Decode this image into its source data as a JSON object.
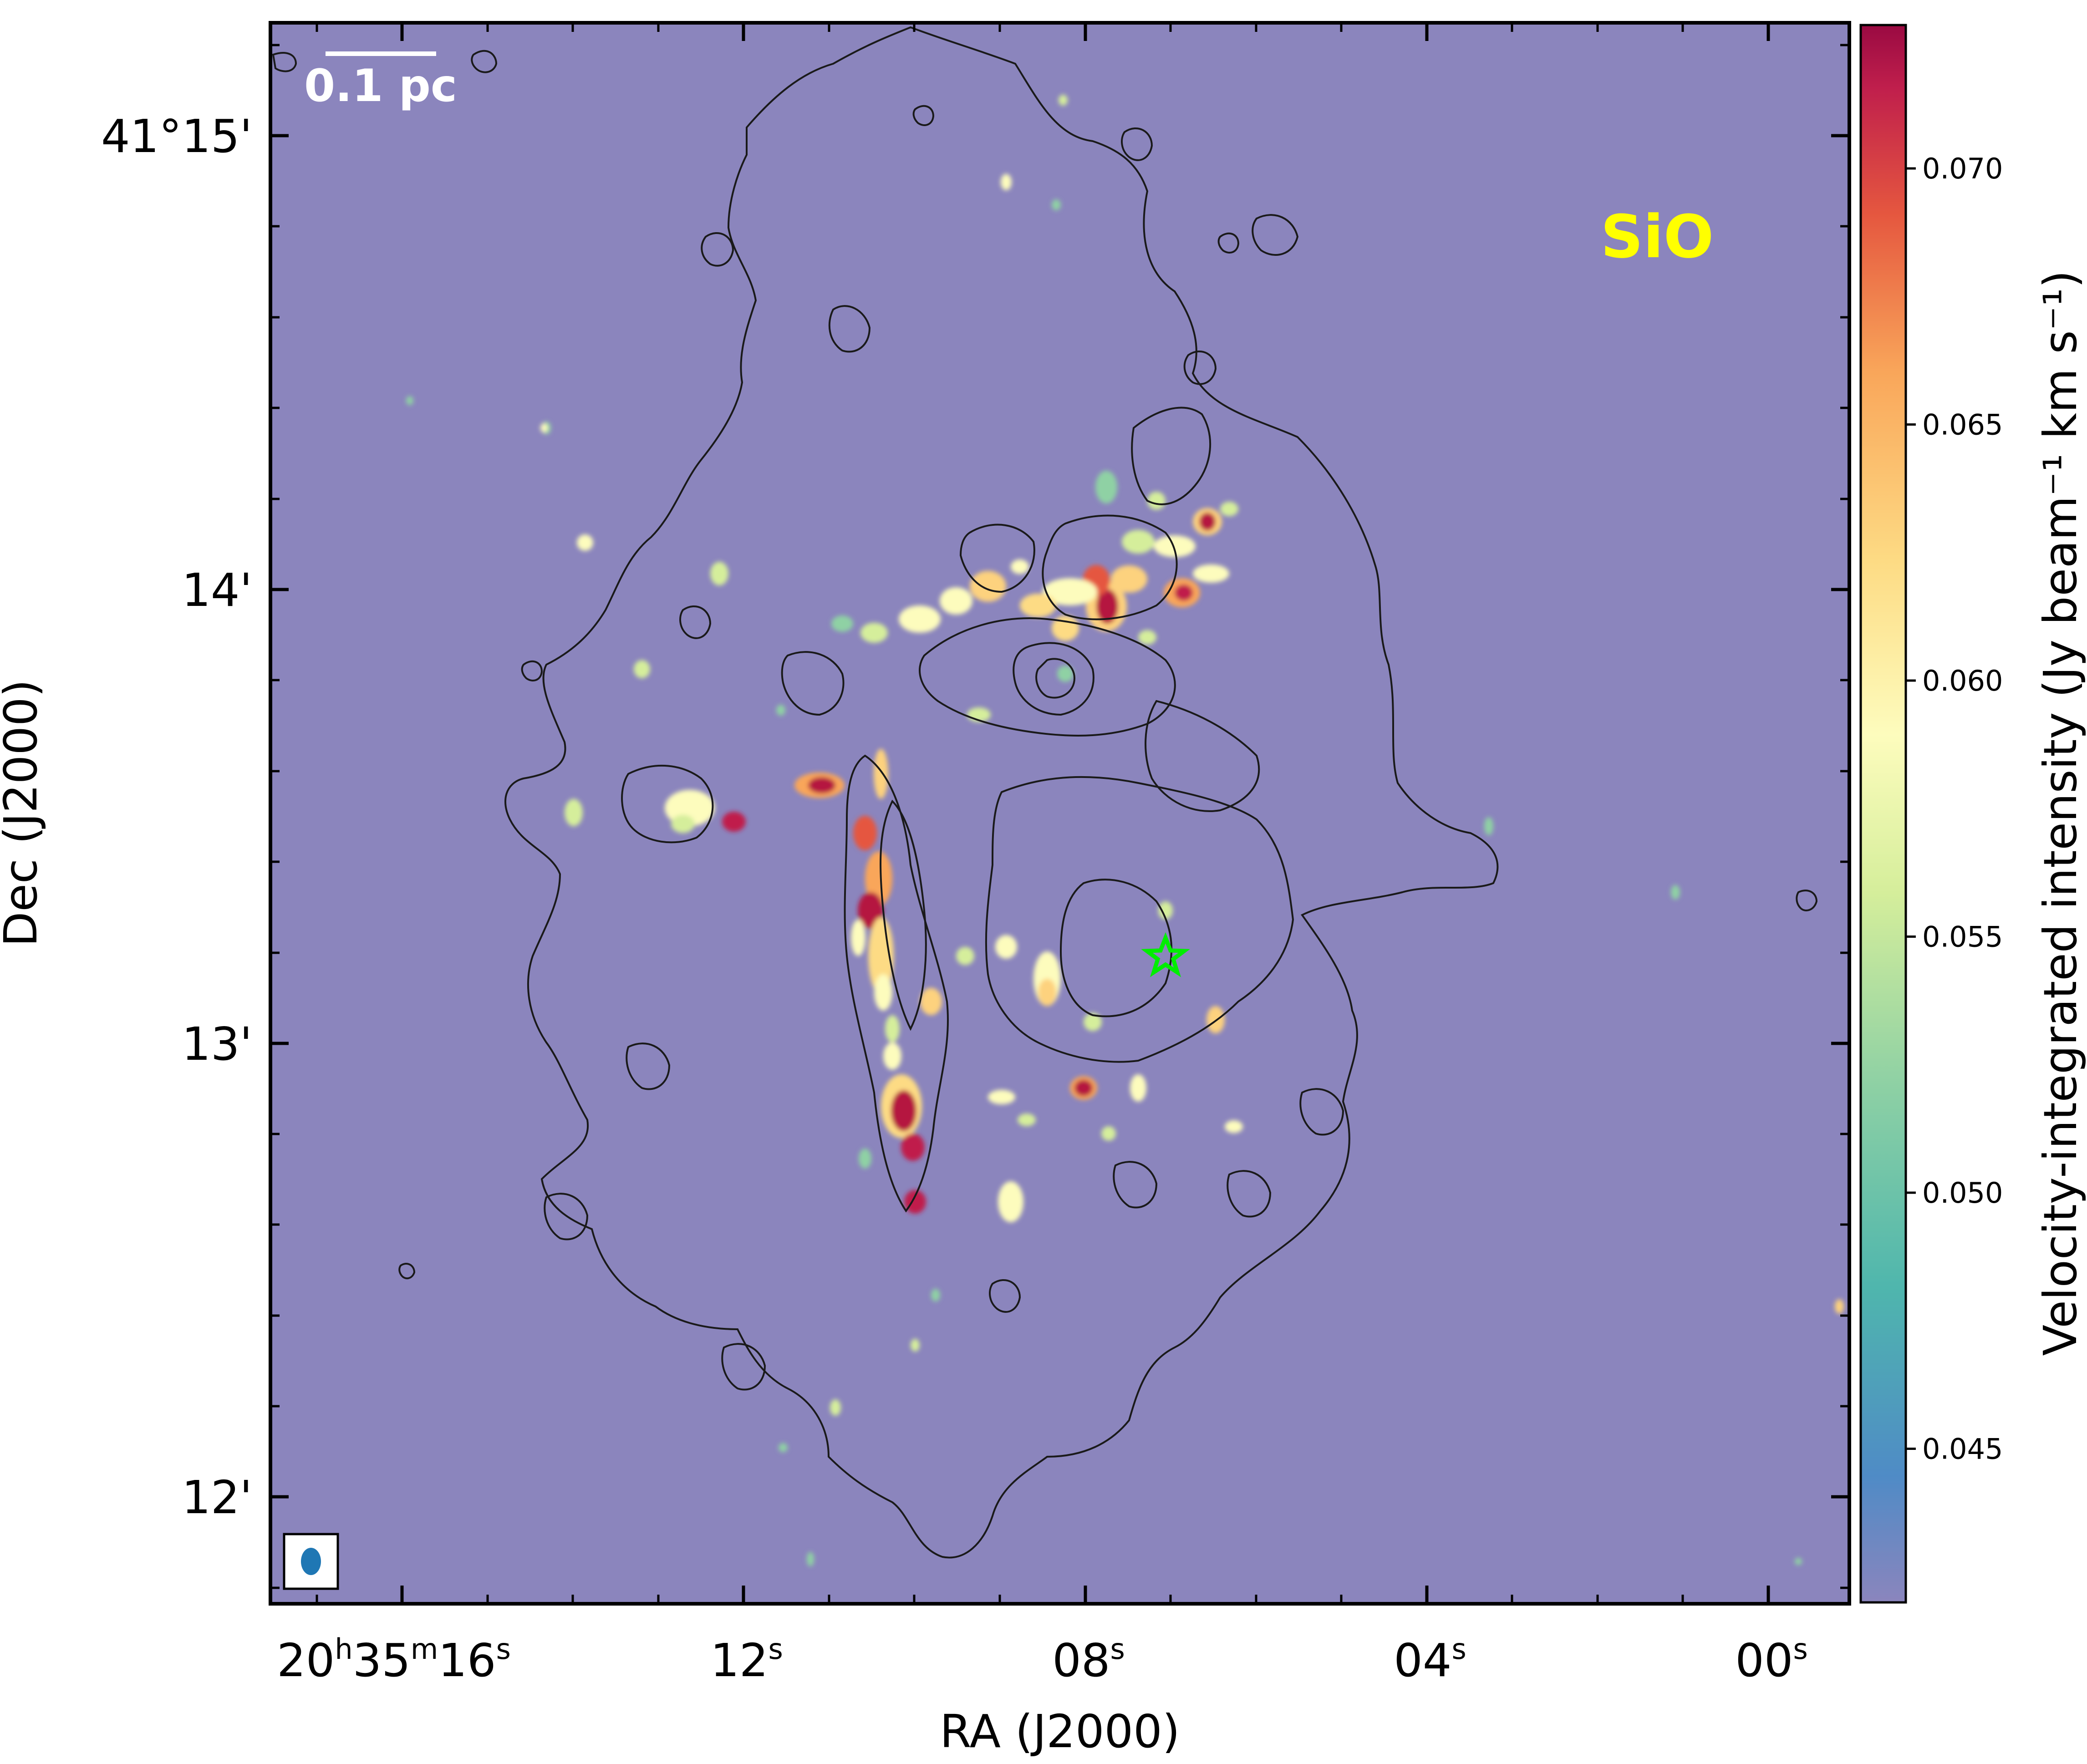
{
  "map": {
    "species_label": "SiO",
    "scale_bar_label": "0.1 pc",
    "xlabel": "RA (J2000)",
    "ylabel": "Dec (J2000)",
    "colorbar_label": "Velocity-integrated intensity (Jy beam⁻¹ km s⁻¹)",
    "colors": {
      "background": "#8b85bd",
      "species_label": "#ffff00",
      "star_marker": "#00ee00",
      "beam": "#1f77b4",
      "contours": "#1a1a1a"
    },
    "x_ticks": [
      {
        "h": "20",
        "m": "35",
        "s": "16"
      },
      {
        "s": "12"
      },
      {
        "s": "08"
      },
      {
        "s": "04"
      },
      {
        "s": "00"
      }
    ],
    "y_ticks": [
      "41°15'",
      "14'",
      "13'",
      "12'"
    ],
    "colorbar": {
      "colormap": "Spectral_r",
      "vmin": 0.042,
      "vmax": 0.0728,
      "ticks": [
        "0.070",
        "0.065",
        "0.060",
        "0.055",
        "0.050",
        "0.045"
      ],
      "tick_values": [
        0.07,
        0.065,
        0.06,
        0.055,
        0.05,
        0.045
      ]
    },
    "icons": [
      "star-marker",
      "beam-ellipse"
    ]
  }
}
